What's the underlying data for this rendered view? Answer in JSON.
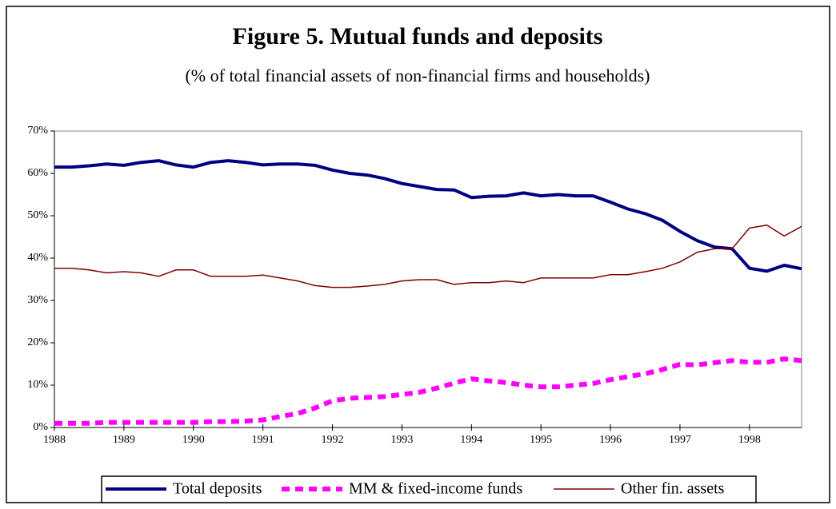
{
  "chart_data": {
    "type": "line",
    "title": "Figure 5. Mutual funds and deposits",
    "subtitle": "(% of total financial assets of non-financial firms and households)",
    "x": [
      1988,
      1988.25,
      1988.5,
      1988.75,
      1989,
      1989.25,
      1989.5,
      1989.75,
      1990,
      1990.25,
      1990.5,
      1990.75,
      1991,
      1991.25,
      1991.5,
      1991.75,
      1992,
      1992.25,
      1992.5,
      1992.75,
      1993,
      1993.25,
      1993.5,
      1993.75,
      1994,
      1994.25,
      1994.5,
      1994.75,
      1995,
      1995.25,
      1995.5,
      1995.75,
      1996,
      1996.25,
      1996.5,
      1996.75,
      1997,
      1997.25,
      1997.5,
      1997.75,
      1998,
      1998.25,
      1998.5,
      1998.75
    ],
    "xlim": [
      1988,
      1998.75
    ],
    "xticks": [
      1988,
      1989,
      1990,
      1991,
      1992,
      1993,
      1994,
      1995,
      1996,
      1997,
      1998
    ],
    "ylim": [
      0,
      70
    ],
    "yticks": [
      {
        "value": 0,
        "label": "0%"
      },
      {
        "value": 10,
        "label": "10%"
      },
      {
        "value": 20,
        "label": "20%"
      },
      {
        "value": 30,
        "label": "30%"
      },
      {
        "value": 40,
        "label": "40%"
      },
      {
        "value": 50,
        "label": "50%"
      },
      {
        "value": 60,
        "label": "60%"
      },
      {
        "value": 70,
        "label": "70%"
      }
    ],
    "legend": "bottom",
    "series": [
      {
        "name": "Total deposits",
        "color": "#000080",
        "style": "solid",
        "width": 4,
        "values": [
          61.5,
          61.5,
          61.8,
          62.2,
          61.9,
          62.6,
          63.0,
          62.0,
          61.5,
          62.6,
          63.0,
          62.6,
          62.0,
          62.2,
          62.2,
          61.9,
          60.8,
          60.0,
          59.6,
          58.8,
          57.6,
          56.9,
          56.2,
          56.1,
          54.3,
          54.6,
          54.7,
          55.4,
          54.7,
          55.0,
          54.7,
          54.7,
          53.2,
          51.6,
          50.5,
          48.9,
          46.3,
          44.1,
          42.6,
          42.2,
          37.6,
          36.9,
          38.3,
          37.5
        ]
      },
      {
        "name": "MM & fixed-income funds",
        "color": "#ff00ff",
        "style": "dashed",
        "width": 6,
        "values": [
          1.0,
          1.0,
          1.0,
          1.2,
          1.2,
          1.2,
          1.2,
          1.2,
          1.2,
          1.4,
          1.4,
          1.5,
          1.8,
          2.6,
          3.3,
          4.6,
          6.3,
          6.9,
          7.1,
          7.3,
          7.8,
          8.3,
          9.3,
          10.5,
          11.5,
          11.0,
          10.6,
          10.0,
          9.6,
          9.6,
          10.0,
          10.4,
          11.3,
          12.0,
          12.7,
          13.7,
          14.9,
          14.8,
          15.3,
          15.8,
          15.4,
          15.4,
          16.2,
          15.8
        ]
      },
      {
        "name": "Other fin. assets",
        "color": "#800000",
        "style": "solid",
        "width": 1.5,
        "values": [
          37.6,
          37.6,
          37.2,
          36.5,
          36.8,
          36.5,
          35.7,
          37.2,
          37.2,
          35.7,
          35.7,
          35.7,
          36.0,
          35.3,
          34.6,
          33.5,
          33.1,
          33.1,
          33.4,
          33.8,
          34.6,
          34.9,
          34.9,
          33.8,
          34.2,
          34.2,
          34.6,
          34.2,
          35.3,
          35.3,
          35.3,
          35.3,
          36.1,
          36.1,
          36.8,
          37.6,
          39.1,
          41.4,
          42.2,
          42.2,
          47.1,
          47.8,
          45.2,
          47.5
        ]
      }
    ]
  }
}
